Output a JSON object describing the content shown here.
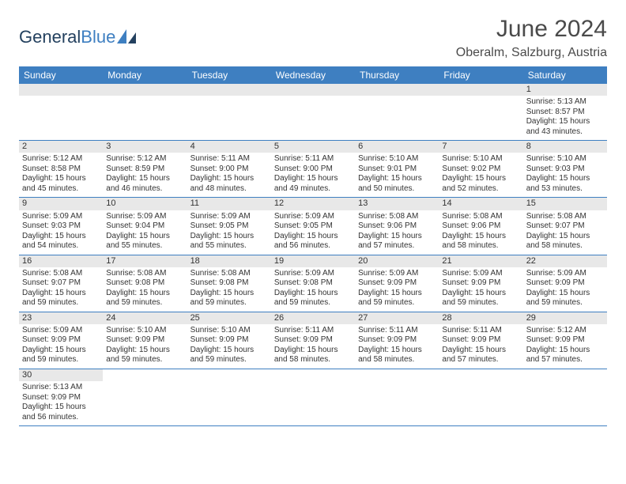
{
  "brand": {
    "general": "General",
    "blue": "Blue"
  },
  "title": "June 2024",
  "location": "Oberalm, Salzburg, Austria",
  "colors": {
    "header_bg": "#3e7fc1",
    "header_text": "#ffffff",
    "strip_bg": "#e8e8e8",
    "cell_border": "#3e7fc1",
    "body_text": "#333333",
    "title_text": "#4a4a4a"
  },
  "weekdays": [
    "Sunday",
    "Monday",
    "Tuesday",
    "Wednesday",
    "Thursday",
    "Friday",
    "Saturday"
  ],
  "weeks": [
    [
      null,
      null,
      null,
      null,
      null,
      null,
      {
        "n": "1",
        "sr": "Sunrise: 5:13 AM",
        "ss": "Sunset: 8:57 PM",
        "dl1": "Daylight: 15 hours",
        "dl2": "and 43 minutes."
      }
    ],
    [
      {
        "n": "2",
        "sr": "Sunrise: 5:12 AM",
        "ss": "Sunset: 8:58 PM",
        "dl1": "Daylight: 15 hours",
        "dl2": "and 45 minutes."
      },
      {
        "n": "3",
        "sr": "Sunrise: 5:12 AM",
        "ss": "Sunset: 8:59 PM",
        "dl1": "Daylight: 15 hours",
        "dl2": "and 46 minutes."
      },
      {
        "n": "4",
        "sr": "Sunrise: 5:11 AM",
        "ss": "Sunset: 9:00 PM",
        "dl1": "Daylight: 15 hours",
        "dl2": "and 48 minutes."
      },
      {
        "n": "5",
        "sr": "Sunrise: 5:11 AM",
        "ss": "Sunset: 9:00 PM",
        "dl1": "Daylight: 15 hours",
        "dl2": "and 49 minutes."
      },
      {
        "n": "6",
        "sr": "Sunrise: 5:10 AM",
        "ss": "Sunset: 9:01 PM",
        "dl1": "Daylight: 15 hours",
        "dl2": "and 50 minutes."
      },
      {
        "n": "7",
        "sr": "Sunrise: 5:10 AM",
        "ss": "Sunset: 9:02 PM",
        "dl1": "Daylight: 15 hours",
        "dl2": "and 52 minutes."
      },
      {
        "n": "8",
        "sr": "Sunrise: 5:10 AM",
        "ss": "Sunset: 9:03 PM",
        "dl1": "Daylight: 15 hours",
        "dl2": "and 53 minutes."
      }
    ],
    [
      {
        "n": "9",
        "sr": "Sunrise: 5:09 AM",
        "ss": "Sunset: 9:03 PM",
        "dl1": "Daylight: 15 hours",
        "dl2": "and 54 minutes."
      },
      {
        "n": "10",
        "sr": "Sunrise: 5:09 AM",
        "ss": "Sunset: 9:04 PM",
        "dl1": "Daylight: 15 hours",
        "dl2": "and 55 minutes."
      },
      {
        "n": "11",
        "sr": "Sunrise: 5:09 AM",
        "ss": "Sunset: 9:05 PM",
        "dl1": "Daylight: 15 hours",
        "dl2": "and 55 minutes."
      },
      {
        "n": "12",
        "sr": "Sunrise: 5:09 AM",
        "ss": "Sunset: 9:05 PM",
        "dl1": "Daylight: 15 hours",
        "dl2": "and 56 minutes."
      },
      {
        "n": "13",
        "sr": "Sunrise: 5:08 AM",
        "ss": "Sunset: 9:06 PM",
        "dl1": "Daylight: 15 hours",
        "dl2": "and 57 minutes."
      },
      {
        "n": "14",
        "sr": "Sunrise: 5:08 AM",
        "ss": "Sunset: 9:06 PM",
        "dl1": "Daylight: 15 hours",
        "dl2": "and 58 minutes."
      },
      {
        "n": "15",
        "sr": "Sunrise: 5:08 AM",
        "ss": "Sunset: 9:07 PM",
        "dl1": "Daylight: 15 hours",
        "dl2": "and 58 minutes."
      }
    ],
    [
      {
        "n": "16",
        "sr": "Sunrise: 5:08 AM",
        "ss": "Sunset: 9:07 PM",
        "dl1": "Daylight: 15 hours",
        "dl2": "and 59 minutes."
      },
      {
        "n": "17",
        "sr": "Sunrise: 5:08 AM",
        "ss": "Sunset: 9:08 PM",
        "dl1": "Daylight: 15 hours",
        "dl2": "and 59 minutes."
      },
      {
        "n": "18",
        "sr": "Sunrise: 5:08 AM",
        "ss": "Sunset: 9:08 PM",
        "dl1": "Daylight: 15 hours",
        "dl2": "and 59 minutes."
      },
      {
        "n": "19",
        "sr": "Sunrise: 5:09 AM",
        "ss": "Sunset: 9:08 PM",
        "dl1": "Daylight: 15 hours",
        "dl2": "and 59 minutes."
      },
      {
        "n": "20",
        "sr": "Sunrise: 5:09 AM",
        "ss": "Sunset: 9:09 PM",
        "dl1": "Daylight: 15 hours",
        "dl2": "and 59 minutes."
      },
      {
        "n": "21",
        "sr": "Sunrise: 5:09 AM",
        "ss": "Sunset: 9:09 PM",
        "dl1": "Daylight: 15 hours",
        "dl2": "and 59 minutes."
      },
      {
        "n": "22",
        "sr": "Sunrise: 5:09 AM",
        "ss": "Sunset: 9:09 PM",
        "dl1": "Daylight: 15 hours",
        "dl2": "and 59 minutes."
      }
    ],
    [
      {
        "n": "23",
        "sr": "Sunrise: 5:09 AM",
        "ss": "Sunset: 9:09 PM",
        "dl1": "Daylight: 15 hours",
        "dl2": "and 59 minutes."
      },
      {
        "n": "24",
        "sr": "Sunrise: 5:10 AM",
        "ss": "Sunset: 9:09 PM",
        "dl1": "Daylight: 15 hours",
        "dl2": "and 59 minutes."
      },
      {
        "n": "25",
        "sr": "Sunrise: 5:10 AM",
        "ss": "Sunset: 9:09 PM",
        "dl1": "Daylight: 15 hours",
        "dl2": "and 59 minutes."
      },
      {
        "n": "26",
        "sr": "Sunrise: 5:11 AM",
        "ss": "Sunset: 9:09 PM",
        "dl1": "Daylight: 15 hours",
        "dl2": "and 58 minutes."
      },
      {
        "n": "27",
        "sr": "Sunrise: 5:11 AM",
        "ss": "Sunset: 9:09 PM",
        "dl1": "Daylight: 15 hours",
        "dl2": "and 58 minutes."
      },
      {
        "n": "28",
        "sr": "Sunrise: 5:11 AM",
        "ss": "Sunset: 9:09 PM",
        "dl1": "Daylight: 15 hours",
        "dl2": "and 57 minutes."
      },
      {
        "n": "29",
        "sr": "Sunrise: 5:12 AM",
        "ss": "Sunset: 9:09 PM",
        "dl1": "Daylight: 15 hours",
        "dl2": "and 57 minutes."
      }
    ],
    [
      {
        "n": "30",
        "sr": "Sunrise: 5:13 AM",
        "ss": "Sunset: 9:09 PM",
        "dl1": "Daylight: 15 hours",
        "dl2": "and 56 minutes."
      },
      null,
      null,
      null,
      null,
      null,
      null
    ]
  ]
}
